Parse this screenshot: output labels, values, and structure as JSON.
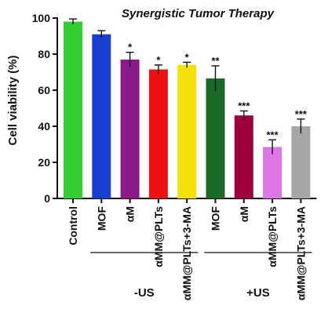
{
  "chart_data": {
    "type": "bar",
    "title": "Synergistic Tumor Therapy",
    "xlabel": "",
    "ylabel": "Cell viability (%)",
    "ylim": [
      0,
      100
    ],
    "yticks": [
      0,
      20,
      40,
      60,
      80,
      100
    ],
    "grid": false,
    "categories": [
      "Control",
      "MOF",
      "αM",
      "αMM@PLTs",
      "αMM@PLTs+3-MA",
      "MOF",
      "αM",
      "αMM@PLTs",
      "αMM@PLTs+3-MA"
    ],
    "values": [
      98,
      91,
      77,
      71.5,
      74,
      66.5,
      46,
      28.5,
      40
    ],
    "errors": [
      1.5,
      2,
      4,
      2.5,
      1.5,
      7,
      2.5,
      4,
      4
    ],
    "significance": [
      "",
      "",
      "*",
      "*",
      "*",
      "**",
      "***",
      "***",
      "***"
    ],
    "colors": [
      "#33cc33",
      "#1a3fcf",
      "#8b1a8b",
      "#ee1111",
      "#f5e10a",
      "#1a6b2a",
      "#a0003a",
      "#dd77e8",
      "#a6a6a6"
    ],
    "groups": [
      {
        "label": "-US",
        "start": 1,
        "end": 4
      },
      {
        "label": "+US",
        "start": 5,
        "end": 8
      }
    ]
  }
}
